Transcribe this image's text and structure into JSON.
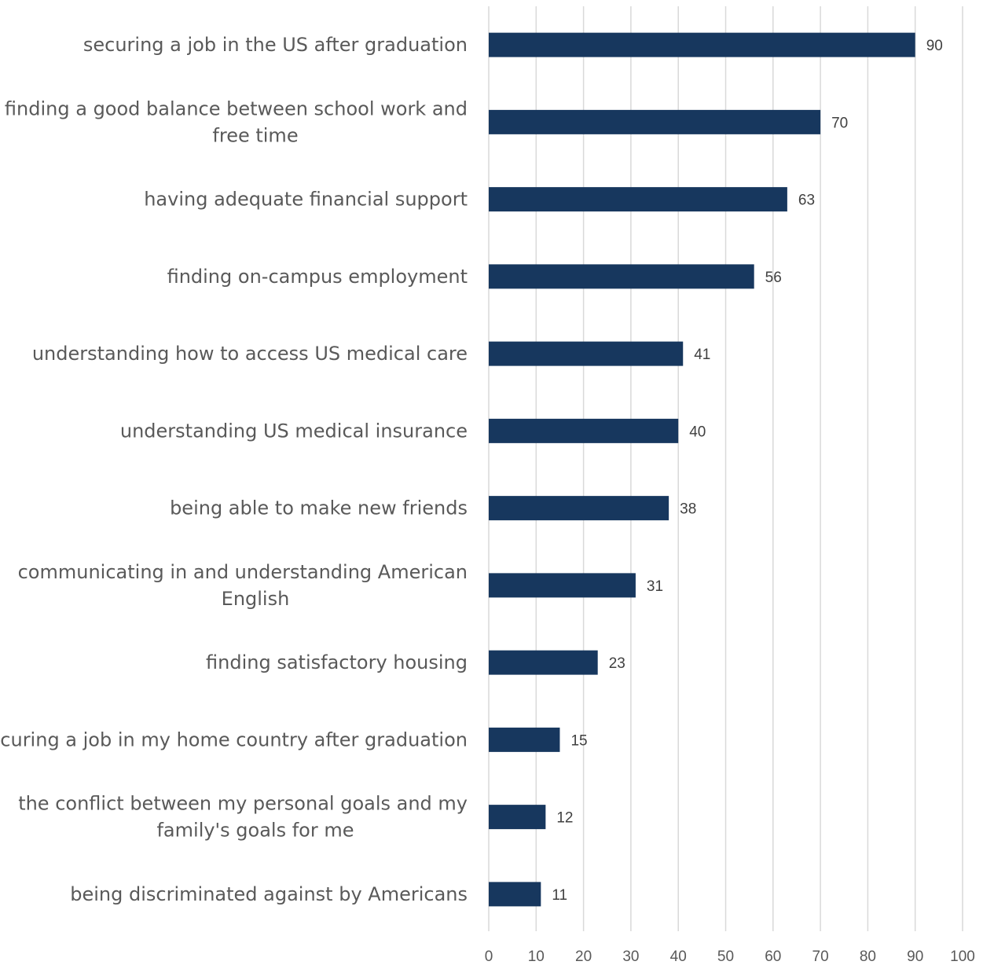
{
  "chart_data": {
    "type": "bar",
    "orientation": "horizontal",
    "categories": [
      "securing a job in the US after graduation",
      "finding a good balance between school work and free time",
      "having adequate financial support",
      "finding on-campus employment",
      "understanding how to access US medical care",
      "understanding US medical insurance",
      "being able to make new friends",
      "communicating in and understanding American English",
      "finding satisfactory housing",
      "securing a job in my home country after graduation",
      "the conflict between my personal goals and my family's goals for me",
      "being discriminated against by Americans"
    ],
    "category_lines": [
      [
        "securing a job in the US after graduation"
      ],
      [
        "finding a good balance between school work and",
        "free time"
      ],
      [
        "having adequate financial support"
      ],
      [
        "finding on-campus employment"
      ],
      [
        "understanding how to access US medical care"
      ],
      [
        "understanding US medical insurance"
      ],
      [
        "being able to make new friends"
      ],
      [
        "communicating in and understanding American",
        "English"
      ],
      [
        "finding satisfactory housing"
      ],
      [
        "securing a job in my home country after graduation"
      ],
      [
        "the conflict between my personal goals and my",
        "family's goals for me"
      ],
      [
        "being discriminated against by Americans"
      ]
    ],
    "values": [
      90,
      70,
      63,
      56,
      41,
      40,
      38,
      31,
      23,
      15,
      12,
      11
    ],
    "data_labels": [
      "90",
      "70",
      "63",
      "56",
      "41",
      "40",
      "38",
      "31",
      "23",
      "15",
      "12",
      "11"
    ],
    "xlim": [
      0,
      100
    ],
    "xticks": [
      0,
      10,
      20,
      30,
      40,
      50,
      60,
      70,
      80,
      90,
      100
    ],
    "xtick_labels": [
      "0",
      "10",
      "20",
      "30",
      "40",
      "50",
      "60",
      "70",
      "80",
      "90",
      "100"
    ],
    "grid": "vertical",
    "title": "",
    "xlabel": "",
    "ylabel": "",
    "bar_color": "#17375e",
    "grid_color": "#d9d9d9"
  }
}
